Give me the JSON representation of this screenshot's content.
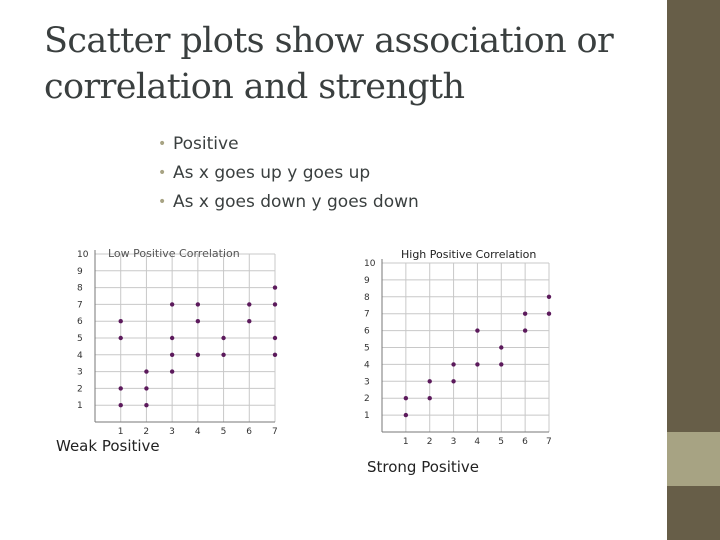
{
  "slide": {
    "title": "Scatter plots show association or correlation and strength",
    "bullets": [
      "Positive",
      "As x goes up y goes up",
      "As x goes down y goes down"
    ]
  },
  "charts": {
    "weak_caption": "Weak Positive",
    "strong_caption": "Strong Positive"
  },
  "chart_data": [
    {
      "type": "scatter",
      "title": "Low Positive Correlation",
      "xlim": [
        0,
        7
      ],
      "ylim": [
        0,
        10
      ],
      "x_ticks": [
        1,
        2,
        3,
        4,
        5,
        6,
        7
      ],
      "y_ticks": [
        1,
        2,
        3,
        4,
        5,
        6,
        7,
        8,
        9,
        10
      ],
      "grid": true,
      "point_color": "#5c1a5c",
      "points": [
        [
          1,
          1
        ],
        [
          1,
          2
        ],
        [
          1,
          5
        ],
        [
          1,
          6
        ],
        [
          2,
          1
        ],
        [
          2,
          2
        ],
        [
          2,
          3
        ],
        [
          3,
          3
        ],
        [
          3,
          4
        ],
        [
          3,
          5
        ],
        [
          3,
          7
        ],
        [
          4,
          4
        ],
        [
          4,
          6
        ],
        [
          4,
          7
        ],
        [
          5,
          4
        ],
        [
          5,
          5
        ],
        [
          6,
          6
        ],
        [
          6,
          7
        ],
        [
          7,
          4
        ],
        [
          7,
          5
        ],
        [
          7,
          7
        ],
        [
          7,
          8
        ]
      ]
    },
    {
      "type": "scatter",
      "title": "High Positive Correlation",
      "xlim": [
        0,
        7
      ],
      "ylim": [
        0,
        10
      ],
      "x_ticks": [
        1,
        2,
        3,
        4,
        5,
        6,
        7
      ],
      "y_ticks": [
        1,
        2,
        3,
        4,
        5,
        6,
        7,
        8,
        9,
        10
      ],
      "grid": true,
      "point_color": "#5c1a5c",
      "points": [
        [
          1,
          1
        ],
        [
          1,
          2
        ],
        [
          2,
          2
        ],
        [
          2,
          3
        ],
        [
          3,
          3
        ],
        [
          3,
          4
        ],
        [
          4,
          4
        ],
        [
          4,
          6
        ],
        [
          5,
          4
        ],
        [
          5,
          5
        ],
        [
          6,
          6
        ],
        [
          6,
          7
        ],
        [
          7,
          7
        ],
        [
          7,
          8
        ]
      ]
    }
  ],
  "colors": {
    "sidebar": "#675e48",
    "sidebar_accent": "#a7a383",
    "bullet": "#a7a383",
    "text": "#3a3f3f"
  }
}
